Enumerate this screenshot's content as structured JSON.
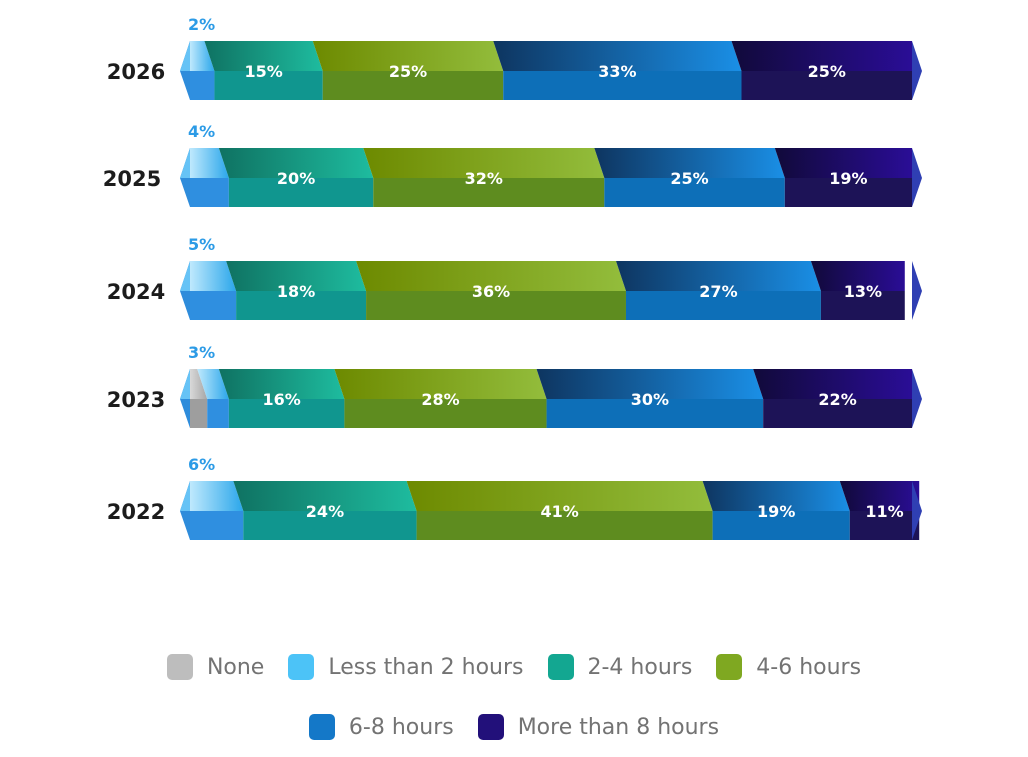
{
  "chart_data": {
    "type": "bar",
    "orientation": "horizontal",
    "stacked": true,
    "value_unit": "%",
    "categories": [
      "2026",
      "2025",
      "2024",
      "2023",
      "2022"
    ],
    "series": [
      {
        "name": "None",
        "color": "#bdbdbd",
        "values": [
          0,
          0,
          0,
          1,
          0
        ],
        "labels": [
          "",
          "",
          "",
          "",
          ""
        ]
      },
      {
        "name": "Less than 2 hours",
        "color": "#4cc3f7",
        "values": [
          2,
          4,
          5,
          3,
          6
        ],
        "labels": [
          "2%",
          "4%",
          "5%",
          "3%",
          "6%"
        ]
      },
      {
        "name": "2-4 hours",
        "color": "#13a791",
        "values": [
          15,
          20,
          18,
          16,
          24
        ],
        "labels": [
          "15%",
          "20%",
          "18%",
          "16%",
          "24%"
        ]
      },
      {
        "name": "4-6 hours",
        "color": "#7fa821",
        "values": [
          25,
          32,
          36,
          28,
          41
        ],
        "labels": [
          "25%",
          "32%",
          "36%",
          "28%",
          "41%"
        ]
      },
      {
        "name": "6-8 hours",
        "color": "#1478c8",
        "values": [
          33,
          25,
          27,
          30,
          19
        ],
        "labels": [
          "33%",
          "25%",
          "27%",
          "30%",
          "19%"
        ]
      },
      {
        "name": "More than 8 hours",
        "color": "#22107a",
        "values": [
          25,
          19,
          13,
          22,
          11
        ],
        "labels": [
          "25%",
          "19%",
          "13%",
          "22%",
          "11%"
        ]
      }
    ],
    "legend_position": "bottom",
    "grid": false,
    "xlim": [
      0,
      100
    ]
  }
}
